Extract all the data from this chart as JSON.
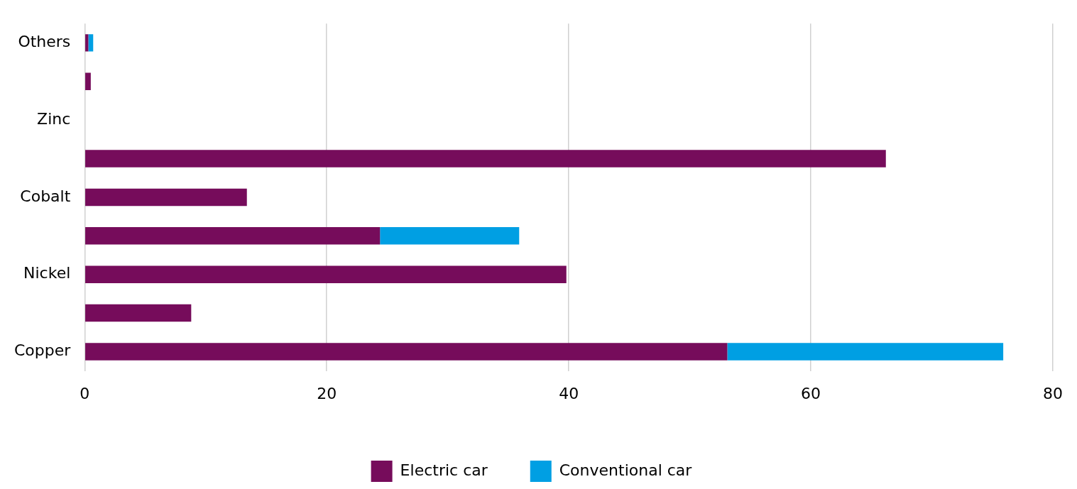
{
  "chart_data": {
    "type": "bar",
    "orientation": "horizontal",
    "stacked": true,
    "categories": [
      "Others",
      null,
      "Zinc",
      null,
      "Cobalt",
      null,
      "Nickel",
      null,
      "Copper"
    ],
    "series": [
      {
        "name": "Electric car",
        "color": "#760c5b",
        "values": [
          0.3,
          0.5,
          0,
          66.2,
          13.4,
          24.4,
          39.8,
          8.8,
          53.1
        ]
      },
      {
        "name": "Conventional car",
        "color": "#009fe3",
        "values": [
          0.4,
          null,
          null,
          null,
          null,
          11.5,
          null,
          null,
          22.8
        ]
      }
    ],
    "xlim": [
      0,
      80
    ],
    "xticks": [
      0,
      20,
      40,
      60,
      80
    ],
    "grid": "x",
    "legend": "bottom"
  }
}
